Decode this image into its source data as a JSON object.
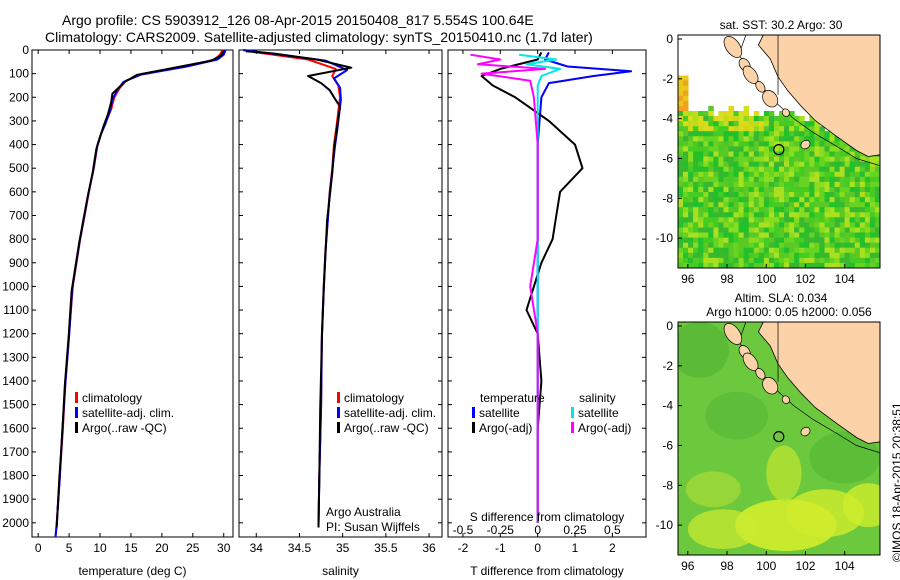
{
  "header": {
    "title1": "Argo profile: CS 5903912_126 08-Apr-2015 20150408_817 5.554S 100.64E",
    "title2": "Climatology: CARS2009. Satellite-adjusted climatology: synTS_20150410.nc (1.7d later)"
  },
  "colors": {
    "climatology": "#ff0000",
    "satellite": "#0000ff",
    "argo": "#000000",
    "salinity_satellite": "#00e5ee",
    "salinity_argo": "#ff00ff",
    "land": "#fcd2a8",
    "shelf": "#444444"
  },
  "credits": {
    "argo_australia": "Argo Australia",
    "pi": "PI: Susan Wijffels",
    "imos_stamp": "©IMOS 18-Apr-2015 20:38:51"
  },
  "legends": {
    "temp": [
      "climatology",
      "satellite-adj. clim.",
      "Argo(..raw -QC)"
    ],
    "sal": [
      "climatology",
      "satellite-adj. clim.",
      "Argo(..raw -QC)"
    ],
    "diff": {
      "temperature_title": "temperature",
      "salinity_title": "salinity",
      "t_sat": "satellite",
      "t_argo": "Argo(-adj)",
      "s_sat": "satellite",
      "s_argo": "Argo(-adj)"
    }
  },
  "chart_data": [
    {
      "type": "line",
      "id": "temperature-profile",
      "xlabel": "temperature (deg C)",
      "xlim": [
        -1,
        31.5
      ],
      "ylim": [
        2060,
        0
      ],
      "xticks": [
        0,
        5,
        10,
        15,
        20,
        25,
        30
      ],
      "yticks": [
        0,
        100,
        200,
        300,
        400,
        500,
        600,
        700,
        800,
        900,
        1000,
        1100,
        1200,
        1300,
        1400,
        1500,
        1600,
        1700,
        1800,
        1900,
        2000
      ],
      "series": [
        {
          "name": "climatology",
          "color": "#ff0000",
          "points": [
            [
              29.8,
              0
            ],
            [
              29.4,
              20
            ],
            [
              28.5,
              40
            ],
            [
              24.0,
              70
            ],
            [
              17.0,
              100
            ],
            [
              14.2,
              130
            ],
            [
              13.2,
              160
            ],
            [
              12.3,
              200
            ],
            [
              11.8,
              250
            ],
            [
              11.0,
              300
            ],
            [
              10.2,
              350
            ],
            [
              9.6,
              400
            ],
            [
              9.0,
              500
            ],
            [
              8.2,
              600
            ],
            [
              7.5,
              700
            ],
            [
              6.8,
              800
            ],
            [
              6.2,
              900
            ],
            [
              5.6,
              1000
            ],
            [
              5.0,
              1200
            ],
            [
              4.4,
              1400
            ],
            [
              4.0,
              1600
            ],
            [
              3.5,
              1800
            ],
            [
              3.0,
              2000
            ],
            [
              2.8,
              2060
            ]
          ]
        },
        {
          "name": "satellite-adj. clim.",
          "color": "#0000ff",
          "points": [
            [
              30.3,
              0
            ],
            [
              30.0,
              20
            ],
            [
              29.0,
              40
            ],
            [
              24.0,
              70
            ],
            [
              16.5,
              105
            ],
            [
              13.8,
              135
            ],
            [
              12.8,
              170
            ],
            [
              12.0,
              210
            ],
            [
              11.6,
              260
            ],
            [
              10.9,
              310
            ],
            [
              10.1,
              360
            ],
            [
              9.5,
              410
            ],
            [
              8.9,
              510
            ],
            [
              8.1,
              610
            ],
            [
              7.4,
              710
            ],
            [
              6.7,
              810
            ],
            [
              6.1,
              910
            ],
            [
              5.5,
              1010
            ],
            [
              5.0,
              1210
            ],
            [
              4.4,
              1410
            ],
            [
              3.9,
              1610
            ],
            [
              3.5,
              1810
            ],
            [
              3.0,
              2010
            ],
            [
              2.8,
              2060
            ]
          ]
        },
        {
          "name": "Argo(..raw -QC)",
          "color": "#000000",
          "points": [
            [
              30.0,
              5
            ],
            [
              29.5,
              25
            ],
            [
              28.0,
              45
            ],
            [
              22.0,
              75
            ],
            [
              16.0,
              105
            ],
            [
              14.0,
              135
            ],
            [
              12.8,
              165
            ],
            [
              12.0,
              185
            ],
            [
              11.8,
              220
            ],
            [
              11.3,
              270
            ],
            [
              10.6,
              320
            ],
            [
              10.0,
              370
            ],
            [
              9.4,
              420
            ],
            [
              8.8,
              520
            ],
            [
              8.0,
              620
            ],
            [
              7.3,
              720
            ],
            [
              6.6,
              820
            ],
            [
              6.0,
              920
            ],
            [
              5.4,
              1020
            ],
            [
              4.9,
              1220
            ],
            [
              4.3,
              1420
            ],
            [
              3.9,
              1620
            ],
            [
              3.4,
              1820
            ],
            [
              3.0,
              2020
            ]
          ]
        }
      ]
    },
    {
      "type": "line",
      "id": "salinity-profile",
      "xlabel": "salinity",
      "xlim": [
        33.8,
        36.15
      ],
      "ylim": [
        2060,
        0
      ],
      "xticks": [
        34,
        34.5,
        35,
        35.5,
        36
      ],
      "series": [
        {
          "name": "climatology",
          "color": "#ff0000",
          "points": [
            [
              33.85,
              0
            ],
            [
              34.0,
              10
            ],
            [
              34.6,
              40
            ],
            [
              34.92,
              80
            ],
            [
              34.88,
              110
            ],
            [
              34.95,
              150
            ],
            [
              34.97,
              200
            ],
            [
              34.95,
              260
            ],
            [
              34.93,
              320
            ],
            [
              34.9,
              400
            ],
            [
              34.88,
              500
            ],
            [
              34.85,
              600
            ],
            [
              34.83,
              700
            ],
            [
              34.8,
              850
            ],
            [
              34.78,
              1000
            ],
            [
              34.76,
              1200
            ],
            [
              34.75,
              1500
            ],
            [
              34.73,
              1800
            ],
            [
              34.72,
              2000
            ]
          ]
        },
        {
          "name": "satellite-adj. clim.",
          "color": "#0000ff",
          "points": [
            [
              33.85,
              0
            ],
            [
              34.1,
              12
            ],
            [
              34.8,
              45
            ],
            [
              35.05,
              85
            ],
            [
              34.9,
              120
            ],
            [
              34.97,
              160
            ],
            [
              34.98,
              210
            ],
            [
              34.96,
              270
            ],
            [
              34.94,
              330
            ],
            [
              34.91,
              410
            ],
            [
              34.88,
              510
            ],
            [
              34.85,
              610
            ],
            [
              34.83,
              710
            ],
            [
              34.8,
              860
            ],
            [
              34.78,
              1010
            ],
            [
              34.76,
              1210
            ],
            [
              34.75,
              1510
            ],
            [
              34.73,
              1810
            ],
            [
              34.72,
              2010
            ]
          ]
        },
        {
          "name": "Argo(..raw -QC)",
          "color": "#000000",
          "points": [
            [
              33.88,
              5
            ],
            [
              34.2,
              15
            ],
            [
              34.7,
              40
            ],
            [
              35.1,
              75
            ],
            [
              34.6,
              110
            ],
            [
              34.75,
              140
            ],
            [
              34.85,
              170
            ],
            [
              34.9,
              200
            ],
            [
              34.97,
              240
            ],
            [
              34.95,
              290
            ],
            [
              34.93,
              340
            ],
            [
              34.9,
              420
            ],
            [
              34.88,
              520
            ],
            [
              34.85,
              620
            ],
            [
              34.82,
              720
            ],
            [
              34.8,
              870
            ],
            [
              34.78,
              1020
            ],
            [
              34.76,
              1220
            ],
            [
              34.74,
              1520
            ],
            [
              34.73,
              1820
            ],
            [
              34.72,
              2020
            ]
          ]
        }
      ]
    },
    {
      "type": "line",
      "id": "difference-profile",
      "xlabel": "T difference from climatology",
      "xlabel_top": "S difference from climatology",
      "xlim": [
        -2.4,
        2.9
      ],
      "ylim": [
        2060,
        0
      ],
      "xticks": [
        -2,
        -1,
        0,
        1,
        2
      ],
      "xticklabels": [
        "-2",
        "-1",
        "0",
        "1",
        "2"
      ],
      "xticks_top": [
        -2,
        -1,
        0,
        1,
        2
      ],
      "xticklabels_top": [
        "-0.5",
        "-0.25",
        "0",
        "0.25",
        "0.5"
      ],
      "series": [
        {
          "name": "temperature satellite",
          "color": "#0000ff",
          "points": [
            [
              0.3,
              10
            ],
            [
              0.2,
              40
            ],
            [
              0.8,
              70
            ],
            [
              2.5,
              90
            ],
            [
              1.5,
              110
            ],
            [
              0.3,
              140
            ],
            [
              0.1,
              200
            ],
            [
              0.0,
              400
            ],
            [
              0.0,
              2000
            ]
          ]
        },
        {
          "name": "temperature Argo(-adj)",
          "color": "#000000",
          "points": [
            [
              0.1,
              10
            ],
            [
              0.0,
              40
            ],
            [
              -1.0,
              80
            ],
            [
              -1.5,
              110
            ],
            [
              -1.2,
              150
            ],
            [
              -0.6,
              200
            ],
            [
              0.3,
              300
            ],
            [
              1.0,
              400
            ],
            [
              1.2,
              500
            ],
            [
              0.6,
              600
            ],
            [
              0.5,
              700
            ],
            [
              0.4,
              800
            ],
            [
              0.1,
              900
            ],
            [
              -0.1,
              1000
            ],
            [
              -0.3,
              1100
            ],
            [
              0.0,
              1200
            ],
            [
              0.1,
              1400
            ],
            [
              0.0,
              1600
            ],
            [
              0.0,
              1800
            ],
            [
              0.0,
              2000
            ]
          ]
        },
        {
          "name": "salinity satellite",
          "color": "#00e5ee",
          "points": [
            [
              -0.5,
              20
            ],
            [
              0.5,
              40
            ],
            [
              -0.3,
              60
            ],
            [
              0.6,
              80
            ],
            [
              0.1,
              110
            ],
            [
              0.0,
              150
            ],
            [
              0.0,
              400
            ],
            [
              0.0,
              2000
            ]
          ]
        },
        {
          "name": "salinity Argo(-adj)",
          "color": "#ff00ff",
          "points": [
            [
              -1.8,
              20
            ],
            [
              -1.0,
              40
            ],
            [
              -1.6,
              60
            ],
            [
              0.2,
              80
            ],
            [
              -1.5,
              100
            ],
            [
              -0.2,
              130
            ],
            [
              -0.1,
              200
            ],
            [
              0.0,
              400
            ],
            [
              0.0,
              800
            ],
            [
              -0.2,
              1000
            ],
            [
              0.0,
              1200
            ],
            [
              0.0,
              2000
            ]
          ]
        }
      ]
    },
    {
      "type": "heatmap",
      "id": "sst-map",
      "title": "sat. SST: 30.2  Argo: 30",
      "xlim": [
        95.5,
        105.8
      ],
      "ylim": [
        -11.5,
        0.2
      ],
      "xticks": [
        96,
        98,
        100,
        102,
        104
      ],
      "yticks": [
        0,
        -2,
        -4,
        -6,
        -8,
        -10
      ],
      "argo_position": [
        100.64,
        -5.554
      ]
    },
    {
      "type": "heatmap",
      "id": "sla-map",
      "title": "Altim. SLA: 0.034",
      "subtitle": "Argo h1000: 0.05 h2000: 0.056",
      "xlim": [
        95.5,
        105.8
      ],
      "ylim": [
        -11.5,
        0.2
      ],
      "xticks": [
        96,
        98,
        100,
        102,
        104
      ],
      "yticks": [
        0,
        -2,
        -4,
        -6,
        -8,
        -10
      ],
      "argo_position": [
        100.64,
        -5.554
      ]
    }
  ]
}
